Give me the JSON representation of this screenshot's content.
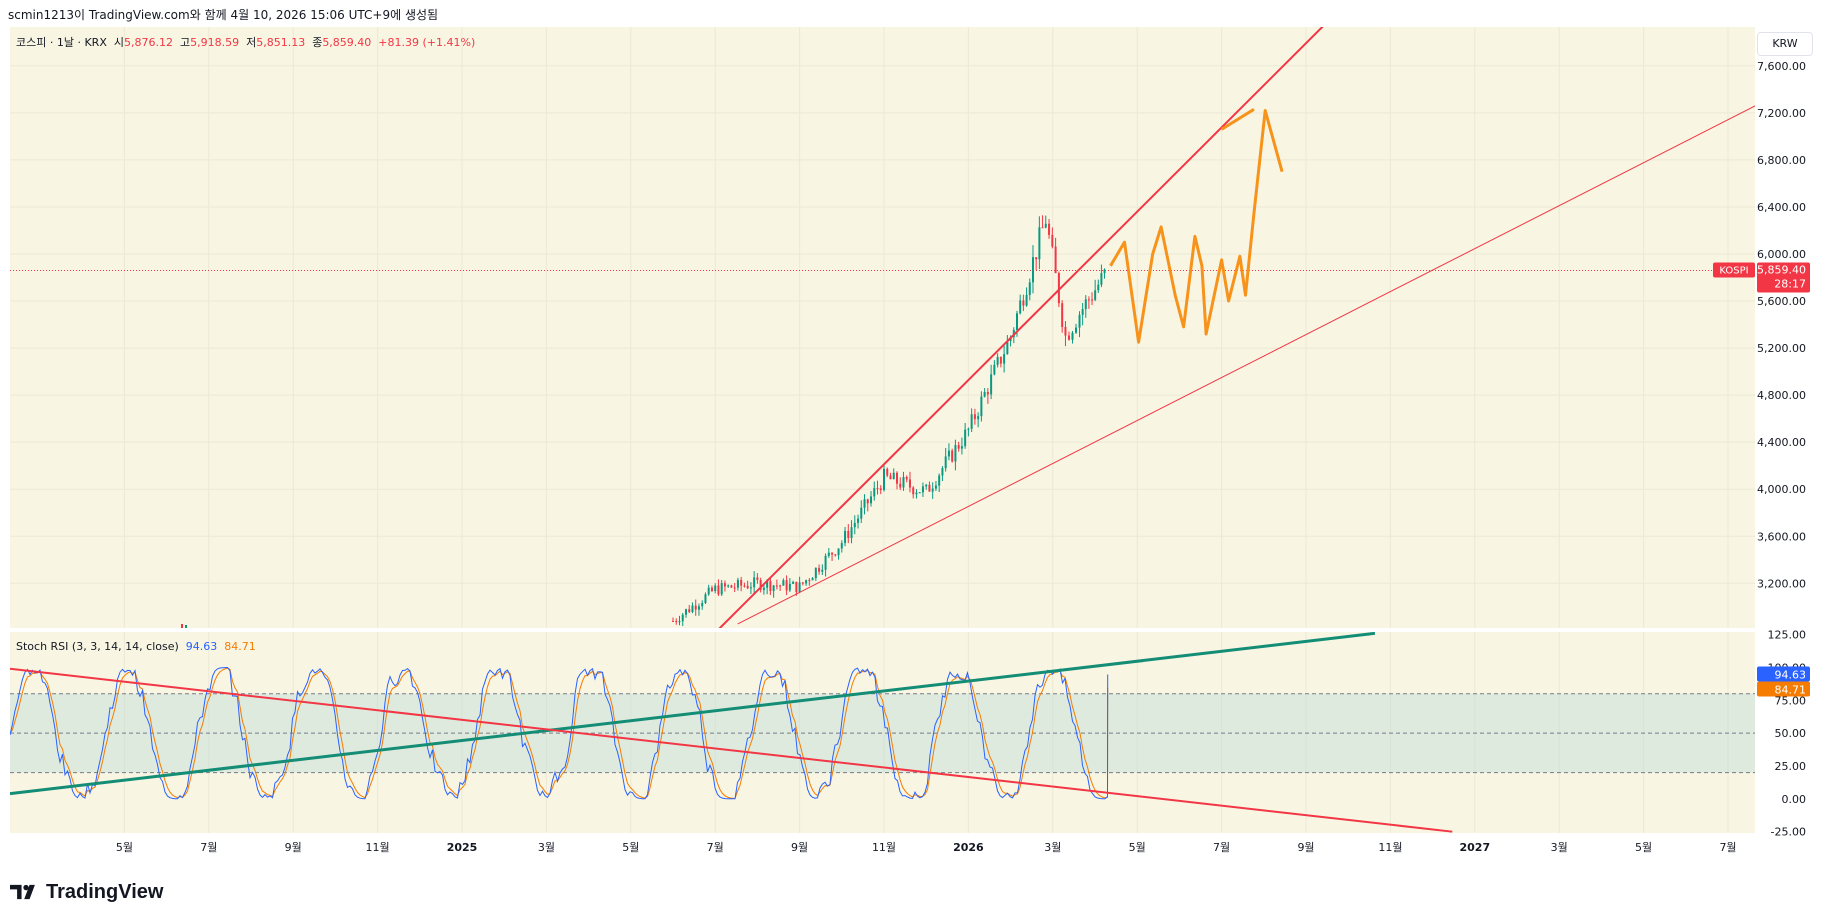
{
  "header": {
    "text": "scmin1213이 TradingView.com와 함께 4월 10, 2026 15:06 UTC+9에 생성됨"
  },
  "legend": {
    "symbol": "코스피 · 1날 · KRX",
    "o_label": "시",
    "o": "5,876.12",
    "h_label": "고",
    "h": "5,918.59",
    "l_label": "저",
    "l": "5,851.13",
    "c_label": "종",
    "c": "5,859.40",
    "change": "+81.39 (+1.41%)"
  },
  "osc_legend": {
    "name": "Stoch RSI (3, 3, 14, 14, close)",
    "k": "94.63",
    "d": "84.71"
  },
  "currency": "KRW",
  "price_badge": {
    "label": "KOSPI",
    "value": "5,859.40",
    "countdown": "28:17"
  },
  "osc_badges": {
    "k": "94.63",
    "d": "84.71"
  },
  "brand": {
    "name": "TradingView"
  },
  "colors": {
    "up": "#089981",
    "down": "#f23645",
    "drawing_orange": "#f7931a",
    "trend_red": "#f23645",
    "trend_green": "#138d75",
    "k_line": "#2962ff",
    "d_line": "#f57c00"
  },
  "chart_data": [
    {
      "type": "line",
      "title": "코스피 · 1날 · KRX",
      "xlabel": "",
      "ylabel": "",
      "x_ticks": [
        "5월",
        "7월",
        "9월",
        "11월",
        "2025",
        "3월",
        "5월",
        "7월",
        "9월",
        "11월",
        "2026",
        "3월",
        "5월",
        "7월",
        "9월",
        "11월",
        "2027",
        "3월",
        "5월",
        "7월"
      ],
      "y_ticks": [
        "3,200.00",
        "3,600.00",
        "4,000.00",
        "4,400.00",
        "4,800.00",
        "5,200.00",
        "5,600.00",
        "6,000.00",
        "6,400.00",
        "6,800.00",
        "7,200.00",
        "7,600.00"
      ],
      "ylim": [
        2820,
        7930
      ],
      "last_close": 5859.4,
      "series": [
        {
          "name": "KOSPI",
          "x": [
            "2025-06-01",
            "2025-07-01",
            "2025-08-01",
            "2025-09-01",
            "2025-10-01",
            "2025-11-01",
            "2025-12-01",
            "2026-01-01",
            "2026-02-01",
            "2026-02-26",
            "2026-03-10",
            "2026-03-20",
            "2026-04-10"
          ],
          "values": [
            2880,
            3150,
            3200,
            3170,
            3550,
            4100,
            3980,
            4500,
            5300,
            6300,
            5300,
            5500,
            5859.4
          ]
        }
      ],
      "drawings": [
        "trendline-red-thick",
        "trendline-red-thin",
        "projected-path-orange"
      ]
    },
    {
      "type": "line",
      "title": "Stoch RSI (3, 3, 14, 14, close)",
      "y_ticks": [
        "-25.00",
        "0.00",
        "25.00",
        "50.00",
        "75.00",
        "100.00",
        "125.00"
      ],
      "ylim": [
        -26,
        127
      ],
      "bands": {
        "upper": 80,
        "middle": 50,
        "lower": 20
      },
      "series": [
        {
          "name": "K",
          "last": 94.63
        },
        {
          "name": "D",
          "last": 84.71
        }
      ],
      "drawings": [
        "trendline-green-rising",
        "trendline-red-falling"
      ]
    }
  ]
}
